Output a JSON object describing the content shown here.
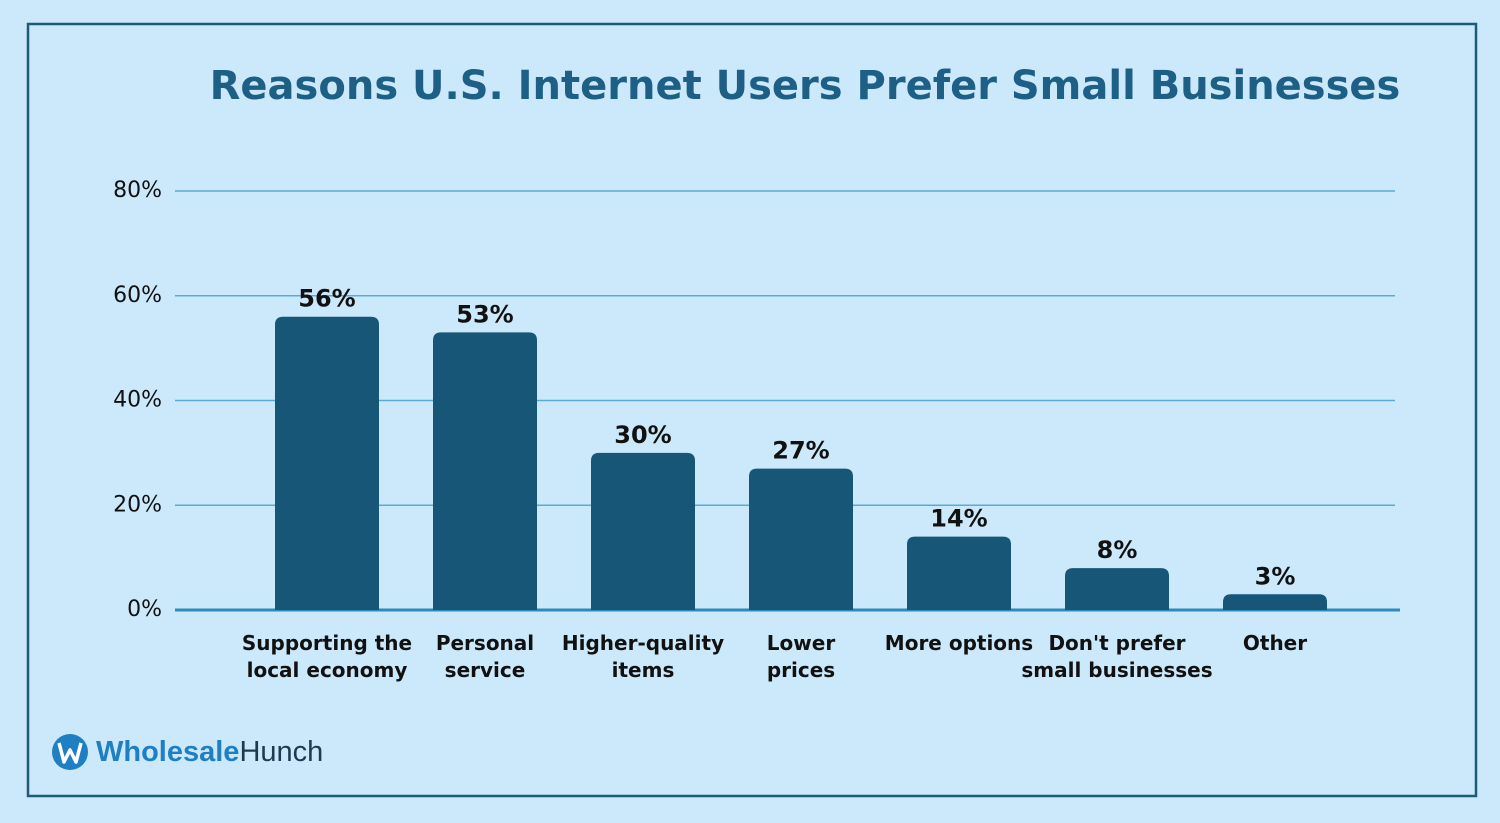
{
  "chart_data": {
    "type": "bar",
    "title": "Reasons U.S. Internet Users Prefer Small Businesses",
    "categories": [
      [
        "Supporting the",
        "local economy"
      ],
      [
        "Personal",
        "service"
      ],
      [
        "Higher-quality",
        "items"
      ],
      [
        "Lower",
        "prices"
      ],
      [
        "More options"
      ],
      [
        "Don't prefer",
        "small businesses"
      ],
      [
        "Other"
      ]
    ],
    "values": [
      56,
      53,
      30,
      27,
      14,
      8,
      3
    ],
    "value_labels": [
      "56%",
      "53%",
      "30%",
      "27%",
      "14%",
      "8%",
      "3%"
    ],
    "color": "#175676",
    "ylim": [
      0,
      80
    ],
    "yticks": [
      {
        "value": 0,
        "label": "0%"
      },
      {
        "value": 20,
        "label": "20%"
      },
      {
        "value": 40,
        "label": "40%"
      },
      {
        "value": 60,
        "label": "60%"
      },
      {
        "value": 80,
        "label": "80%"
      }
    ],
    "grid": true
  },
  "logo": {
    "bold": "Wholesale",
    "regular": "Hunch"
  }
}
